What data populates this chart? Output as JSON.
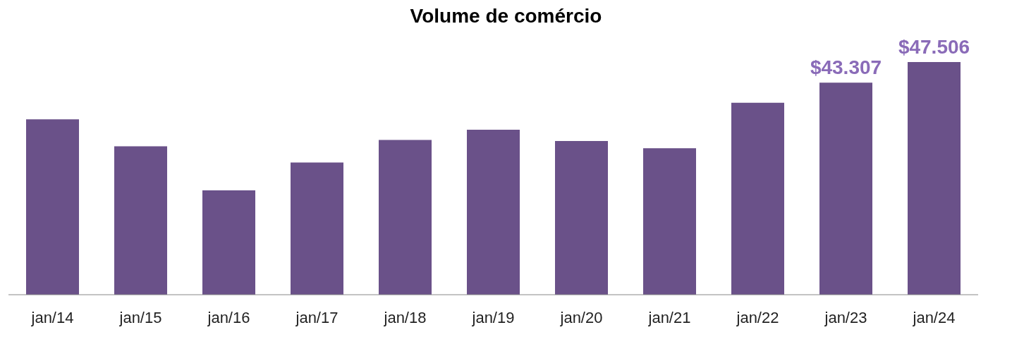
{
  "chart_data": {
    "type": "bar",
    "title": "Volume de comércio",
    "categories": [
      "jan/14",
      "jan/15",
      "jan/16",
      "jan/17",
      "jan/18",
      "jan/19",
      "jan/20",
      "jan/21",
      "jan/22",
      "jan/23",
      "jan/24"
    ],
    "series": [
      {
        "color": "#6a5189",
        "values": [
          35800,
          30300,
          21300,
          27000,
          31600,
          33700,
          31400,
          29900,
          39200,
          43307,
          47506
        ],
        "value_labels": [
          null,
          null,
          null,
          null,
          null,
          null,
          null,
          null,
          null,
          "$43.307",
          "$47.506"
        ]
      }
    ]
  }
}
